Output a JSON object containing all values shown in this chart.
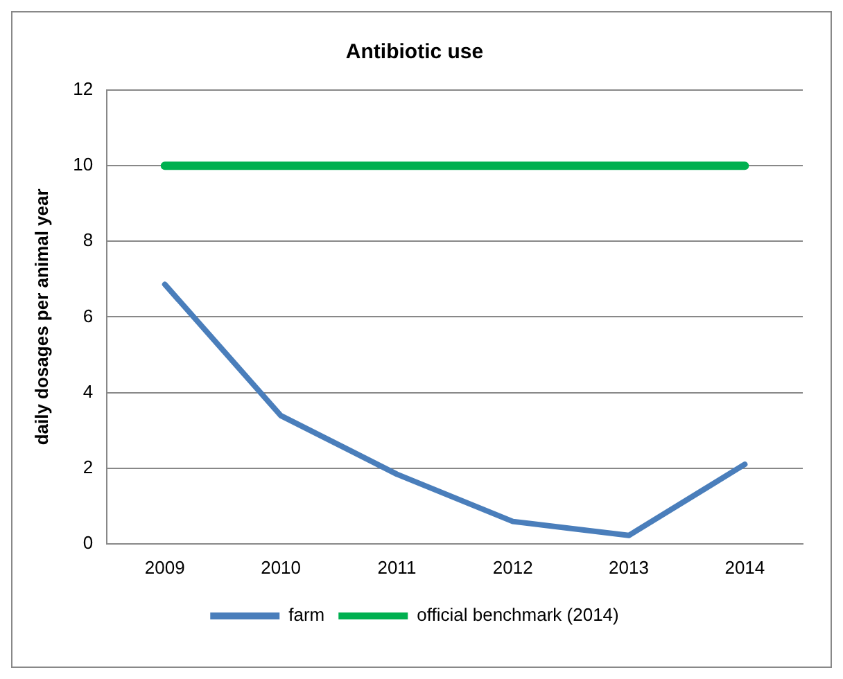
{
  "chart_data": {
    "type": "line",
    "title": "Antibiotic use",
    "ylabel": "daily dosages per animal year",
    "categories": [
      "2009",
      "2010",
      "2011",
      "2012",
      "2013",
      "2014"
    ],
    "series": [
      {
        "name": "farm",
        "color": "#4a7ebb",
        "values": [
          6.86,
          3.39,
          1.84,
          0.59,
          0.22,
          2.1
        ]
      },
      {
        "name": "official benchmark (2014)",
        "color": "#00b050",
        "values": [
          10,
          10,
          10,
          10,
          10,
          10
        ]
      }
    ],
    "ylim": [
      0,
      12
    ],
    "yticks": [
      0,
      2,
      4,
      6,
      8,
      10,
      12
    ],
    "grid": "y",
    "legend": "bottom",
    "marker": "none",
    "line_style": "solid"
  }
}
